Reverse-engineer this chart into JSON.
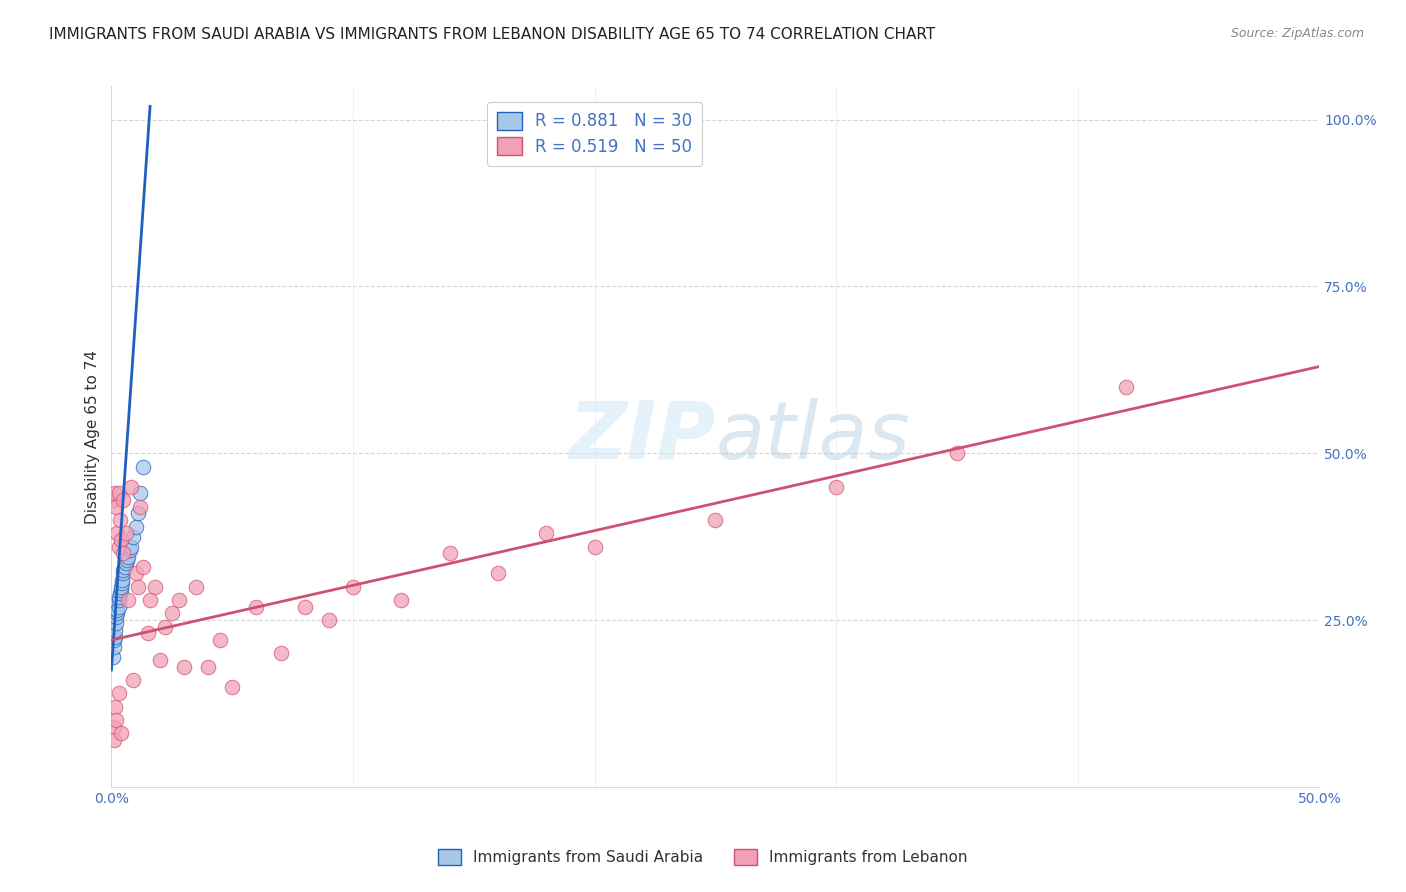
{
  "title": "IMMIGRANTS FROM SAUDI ARABIA VS IMMIGRANTS FROM LEBANON DISABILITY AGE 65 TO 74 CORRELATION CHART",
  "source": "Source: ZipAtlas.com",
  "ylabel": "Disability Age 65 to 74",
  "xlim": [
    0.0,
    0.5
  ],
  "ylim": [
    0.0,
    1.05
  ],
  "watermark_zip": "ZIP",
  "watermark_atlas": "atlas",
  "legend_r1": "R = 0.881",
  "legend_n1": "N = 30",
  "legend_r2": "R = 0.519",
  "legend_n2": "N = 50",
  "color_saudi": "#a8c8e8",
  "color_lebanon": "#f2a0b8",
  "line_color_saudi": "#2060c0",
  "line_color_lebanon": "#d05070",
  "saudi_x": [
    0.0008,
    0.001,
    0.0012,
    0.0015,
    0.0015,
    0.002,
    0.002,
    0.0022,
    0.0025,
    0.003,
    0.003,
    0.0032,
    0.0035,
    0.004,
    0.004,
    0.0042,
    0.0045,
    0.005,
    0.005,
    0.0055,
    0.006,
    0.0065,
    0.007,
    0.0075,
    0.008,
    0.009,
    0.01,
    0.011,
    0.012,
    0.013
  ],
  "saudi_y": [
    0.195,
    0.21,
    0.22,
    0.225,
    0.235,
    0.245,
    0.255,
    0.26,
    0.265,
    0.27,
    0.28,
    0.285,
    0.29,
    0.295,
    0.3,
    0.305,
    0.31,
    0.32,
    0.325,
    0.33,
    0.335,
    0.34,
    0.345,
    0.355,
    0.36,
    0.375,
    0.39,
    0.41,
    0.44,
    0.48
  ],
  "lebanon_x": [
    0.0005,
    0.001,
    0.0012,
    0.0015,
    0.0015,
    0.002,
    0.002,
    0.0025,
    0.003,
    0.003,
    0.003,
    0.0035,
    0.004,
    0.004,
    0.005,
    0.005,
    0.006,
    0.007,
    0.008,
    0.009,
    0.01,
    0.011,
    0.012,
    0.013,
    0.015,
    0.016,
    0.018,
    0.02,
    0.022,
    0.025,
    0.028,
    0.03,
    0.035,
    0.04,
    0.045,
    0.05,
    0.06,
    0.07,
    0.08,
    0.09,
    0.1,
    0.12,
    0.14,
    0.16,
    0.18,
    0.2,
    0.25,
    0.3,
    0.35,
    0.42
  ],
  "lebanon_y": [
    0.43,
    0.09,
    0.07,
    0.44,
    0.12,
    0.1,
    0.42,
    0.38,
    0.36,
    0.14,
    0.44,
    0.4,
    0.37,
    0.08,
    0.35,
    0.43,
    0.38,
    0.28,
    0.45,
    0.16,
    0.32,
    0.3,
    0.42,
    0.33,
    0.23,
    0.28,
    0.3,
    0.19,
    0.24,
    0.26,
    0.28,
    0.18,
    0.3,
    0.18,
    0.22,
    0.15,
    0.27,
    0.2,
    0.27,
    0.25,
    0.3,
    0.28,
    0.35,
    0.32,
    0.38,
    0.36,
    0.4,
    0.45,
    0.5,
    0.6
  ],
  "saudi_line_x": [
    0.0,
    0.016
  ],
  "saudi_line_y": [
    0.175,
    1.02
  ],
  "lebanon_line_x": [
    0.0,
    0.5
  ],
  "lebanon_line_y": [
    0.22,
    0.63
  ],
  "background_color": "#ffffff",
  "grid_color": "#cccccc",
  "title_fontsize": 11,
  "axis_label_fontsize": 11,
  "tick_fontsize": 10
}
